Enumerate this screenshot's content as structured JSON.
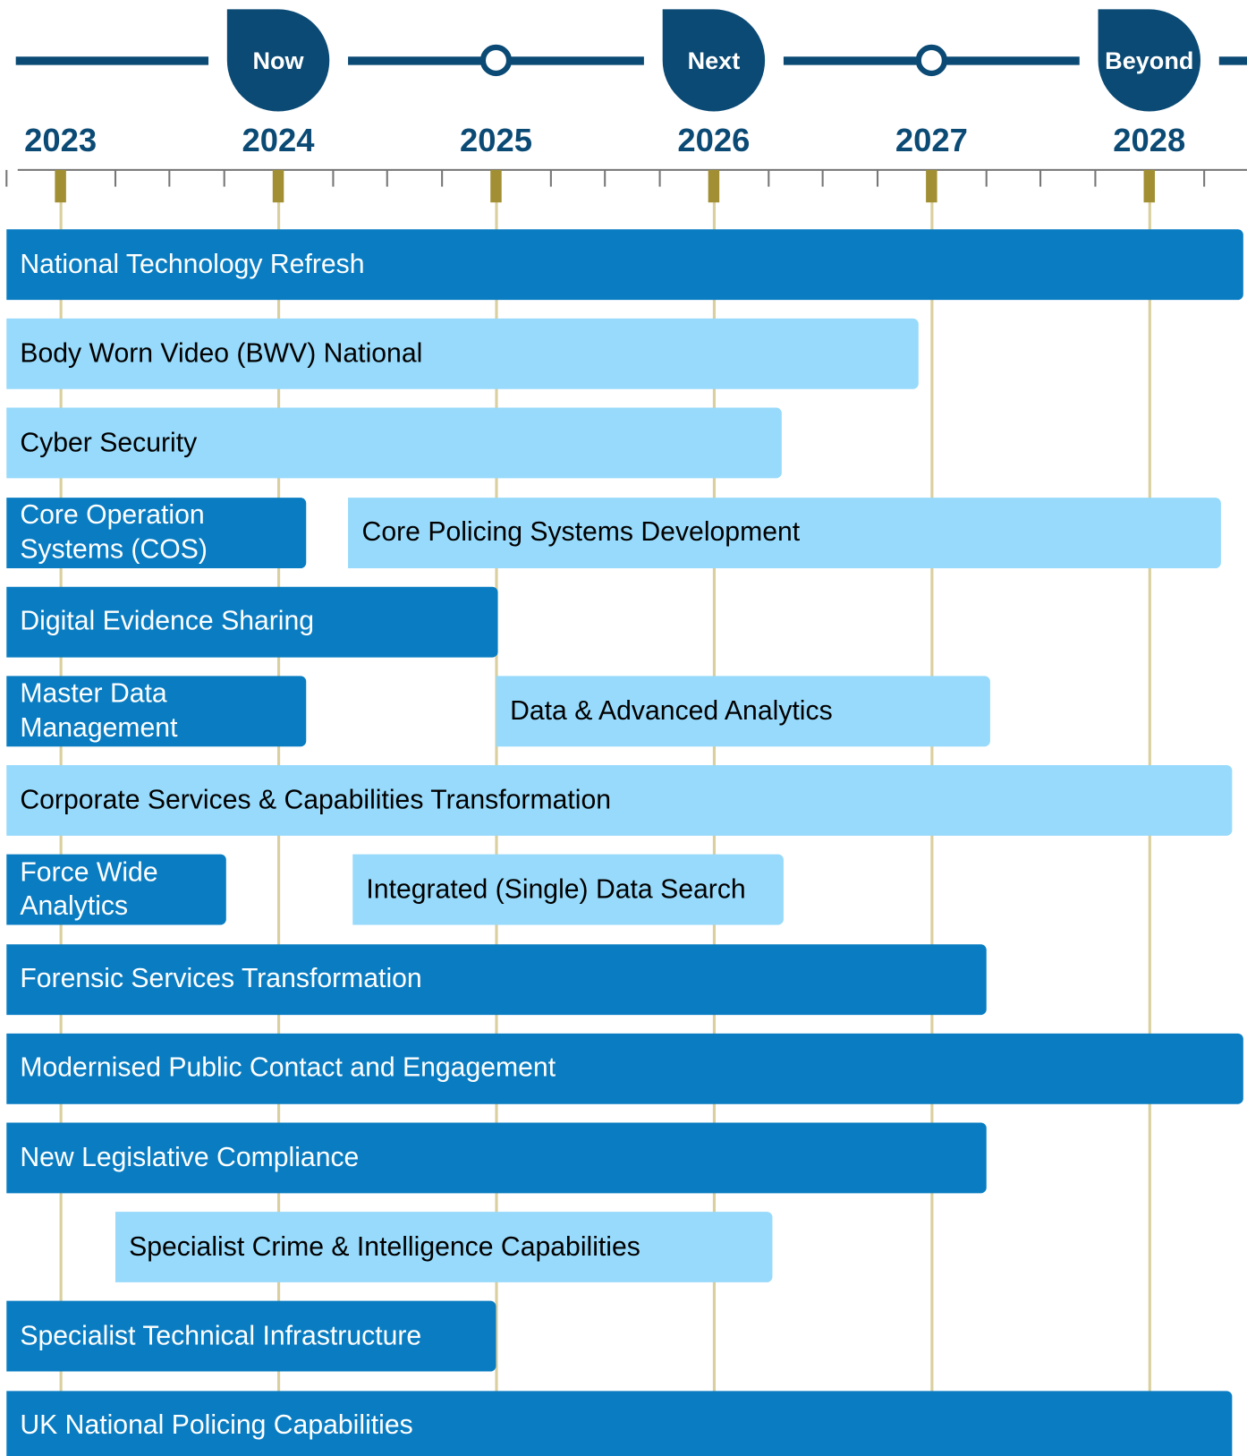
{
  "chart_data": {
    "type": "gantt",
    "xlim": [
      2022.75,
      2028.45
    ],
    "xticks": [
      2023,
      2024,
      2025,
      2026,
      2027,
      2028
    ],
    "minor_ticks_per_interval": 4,
    "grid": true,
    "milestones": [
      {
        "x": 2024,
        "label": "Now"
      },
      {
        "x": 2026,
        "label": "Next"
      },
      {
        "x": 2028,
        "label": "Beyond"
      }
    ],
    "markers": [
      2025,
      2027
    ],
    "tasks": [
      {
        "name": "National Technology Refresh",
        "row": 0,
        "start": 2022.75,
        "end": 2028.43,
        "color": "#0a7dc2"
      },
      {
        "name": "Body Worn Video (BWV) National",
        "row": 1,
        "start": 2022.75,
        "end": 2026.94,
        "color": "#97dafb"
      },
      {
        "name": "Cyber Security",
        "row": 2,
        "start": 2022.75,
        "end": 2026.31,
        "color": "#97dafb"
      },
      {
        "name": "Core Operation Systems (COS)",
        "row": 3,
        "start": 2022.75,
        "end": 2024.13,
        "color": "#0a7dc2"
      },
      {
        "name": "Core Policing Systems Development",
        "row": 3,
        "start": 2024.32,
        "end": 2028.33,
        "color": "#97dafb"
      },
      {
        "name": "Digital Evidence Sharing",
        "row": 4,
        "start": 2022.75,
        "end": 2025.01,
        "color": "#0a7dc2"
      },
      {
        "name": "Master Data Management",
        "row": 5,
        "start": 2022.75,
        "end": 2024.13,
        "color": "#0a7dc2"
      },
      {
        "name": "Data & Advanced Analytics",
        "row": 5,
        "start": 2025.0,
        "end": 2027.27,
        "color": "#97dafb"
      },
      {
        "name": "Corporate Services & Capabilities Transformation",
        "row": 6,
        "start": 2022.75,
        "end": 2028.38,
        "color": "#97dafb"
      },
      {
        "name": "Force Wide Analytics",
        "row": 7,
        "start": 2022.75,
        "end": 2023.76,
        "color": "#0a7dc2"
      },
      {
        "name": "Integrated (Single) Data Search",
        "row": 7,
        "start": 2024.34,
        "end": 2026.32,
        "color": "#97dafb"
      },
      {
        "name": "Forensic Services Transformation",
        "row": 8,
        "start": 2022.75,
        "end": 2027.25,
        "color": "#0a7dc2"
      },
      {
        "name": "Modernised Public Contact and Engagement",
        "row": 9,
        "start": 2022.75,
        "end": 2028.43,
        "color": "#0a7dc2"
      },
      {
        "name": "New Legislative Compliance",
        "row": 10,
        "start": 2022.75,
        "end": 2027.25,
        "color": "#0a7dc2"
      },
      {
        "name": "Specialist Crime & Intelligence Capabilities",
        "row": 11,
        "start": 2023.25,
        "end": 2026.27,
        "color": "#97dafb"
      },
      {
        "name": "Specialist Technical Infrastructure",
        "row": 12,
        "start": 2022.75,
        "end": 2025.0,
        "color": "#0a7dc2"
      },
      {
        "name": "UK National Policing Capabilities",
        "row": 13,
        "start": 2022.75,
        "end": 2028.38,
        "color": "#0a7dc2"
      }
    ]
  }
}
